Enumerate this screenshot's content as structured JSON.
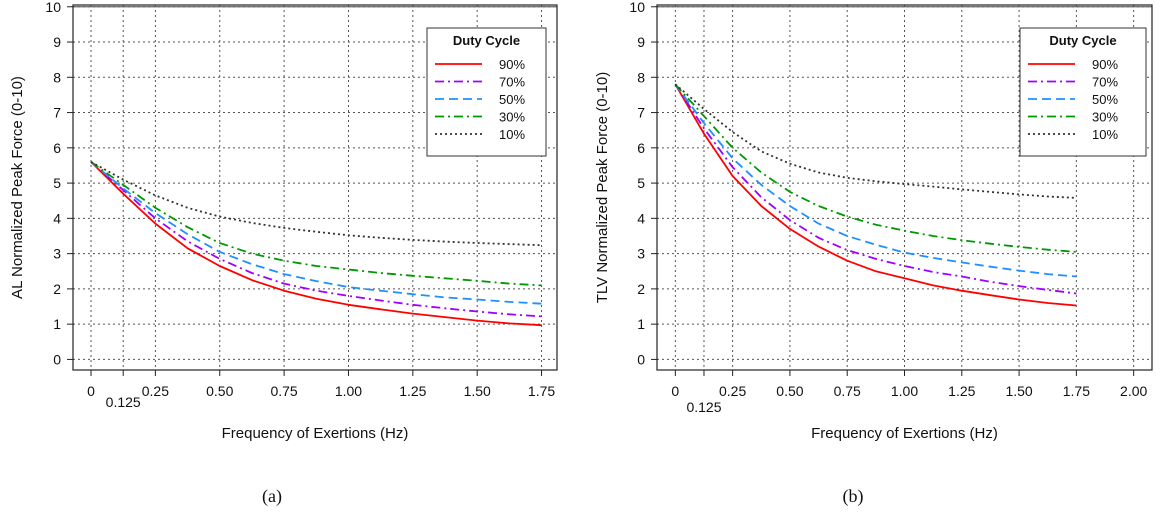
{
  "chart_data": [
    {
      "type": "line",
      "panel_label": "(a)",
      "xlabel": "Frequency of Exertions (Hz)",
      "ylabel": "AL Normalized Peak Force (0-10)",
      "xlim": [
        -0.07,
        1.81
      ],
      "ylim": [
        -0.3,
        10.05
      ],
      "x_ticks": [
        "0",
        "0.25",
        "0.50",
        "0.75",
        "1.00",
        "1.25",
        "1.50",
        "1.75"
      ],
      "x_tick_values": [
        0,
        0.25,
        0.5,
        0.75,
        1.0,
        1.25,
        1.5,
        1.75
      ],
      "x_extra_tick_label": "0.125",
      "x_extra_tick_value": 0.125,
      "y_ticks": [
        "0",
        "1",
        "2",
        "3",
        "4",
        "5",
        "6",
        "7",
        "8",
        "9",
        "10"
      ],
      "y_tick_values": [
        0,
        1,
        2,
        3,
        4,
        5,
        6,
        7,
        8,
        9,
        10
      ],
      "grid": true,
      "reference_line_y": 10,
      "legend": {
        "title": "Duty Cycle",
        "position": "top-right"
      },
      "x": [
        0,
        0.125,
        0.25,
        0.375,
        0.5,
        0.625,
        0.75,
        0.875,
        1.0,
        1.125,
        1.25,
        1.375,
        1.5,
        1.625,
        1.75
      ],
      "series": [
        {
          "name": "90%",
          "color": "#ff0000",
          "dash": "solid",
          "values": [
            5.6,
            4.7,
            3.85,
            3.15,
            2.65,
            2.25,
            1.95,
            1.72,
            1.55,
            1.42,
            1.3,
            1.2,
            1.1,
            1.02,
            0.97
          ]
        },
        {
          "name": "70%",
          "color": "#a000ff",
          "dash": "dashdot",
          "values": [
            5.6,
            4.8,
            4.0,
            3.35,
            2.85,
            2.45,
            2.15,
            1.95,
            1.8,
            1.67,
            1.55,
            1.45,
            1.36,
            1.28,
            1.22
          ]
        },
        {
          "name": "50%",
          "color": "#1e90ff",
          "dash": "dashed",
          "values": [
            5.6,
            4.85,
            4.15,
            3.55,
            3.05,
            2.7,
            2.42,
            2.22,
            2.05,
            1.95,
            1.85,
            1.76,
            1.7,
            1.63,
            1.58
          ]
        },
        {
          "name": "30%",
          "color": "#009900",
          "dash": "dashdot",
          "values": [
            5.6,
            4.95,
            4.3,
            3.75,
            3.3,
            3.0,
            2.8,
            2.65,
            2.55,
            2.45,
            2.37,
            2.3,
            2.23,
            2.15,
            2.1
          ]
        },
        {
          "name": "10%",
          "color": "#333333",
          "dash": "dotted",
          "values": [
            5.6,
            5.1,
            4.65,
            4.3,
            4.05,
            3.87,
            3.73,
            3.62,
            3.52,
            3.45,
            3.39,
            3.34,
            3.3,
            3.27,
            3.24
          ]
        }
      ]
    },
    {
      "type": "line",
      "panel_label": "(b)",
      "xlabel": "Frequency of Exertions (Hz)",
      "ylabel": "TLV Normalized Peak Force (0-10)",
      "xlim": [
        -0.08,
        2.08
      ],
      "ylim": [
        -0.3,
        10.05
      ],
      "x_ticks": [
        "0",
        "0.25",
        "0.50",
        "0.75",
        "1.00",
        "1.25",
        "1.50",
        "1.75",
        "2.00"
      ],
      "x_tick_values": [
        0,
        0.25,
        0.5,
        0.75,
        1.0,
        1.25,
        1.5,
        1.75,
        2.0
      ],
      "x_extra_tick_label": "0.125",
      "x_extra_tick_value": 0.125,
      "y_ticks": [
        "0",
        "1",
        "2",
        "3",
        "4",
        "5",
        "6",
        "7",
        "8",
        "9",
        "10"
      ],
      "y_tick_values": [
        0,
        1,
        2,
        3,
        4,
        5,
        6,
        7,
        8,
        9,
        10
      ],
      "grid": true,
      "reference_line_y": 10,
      "legend": {
        "title": "Duty Cycle",
        "position": "top-right"
      },
      "x": [
        0,
        0.125,
        0.25,
        0.375,
        0.5,
        0.625,
        0.75,
        0.875,
        1.0,
        1.125,
        1.25,
        1.375,
        1.5,
        1.625,
        1.75
      ],
      "series": [
        {
          "name": "90%",
          "color": "#ff0000",
          "dash": "solid",
          "values": [
            7.8,
            6.4,
            5.2,
            4.35,
            3.7,
            3.2,
            2.8,
            2.5,
            2.3,
            2.1,
            1.95,
            1.82,
            1.7,
            1.6,
            1.53
          ]
        },
        {
          "name": "70%",
          "color": "#a000ff",
          "dash": "dashdot",
          "values": [
            7.8,
            6.55,
            5.45,
            4.6,
            3.95,
            3.45,
            3.1,
            2.85,
            2.65,
            2.48,
            2.35,
            2.2,
            2.08,
            1.97,
            1.87
          ]
        },
        {
          "name": "50%",
          "color": "#1e90ff",
          "dash": "dashed",
          "values": [
            7.8,
            6.7,
            5.7,
            4.95,
            4.35,
            3.85,
            3.5,
            3.25,
            3.03,
            2.88,
            2.75,
            2.63,
            2.52,
            2.42,
            2.35
          ]
        },
        {
          "name": "30%",
          "color": "#009900",
          "dash": "dashdot",
          "values": [
            7.8,
            6.9,
            6.0,
            5.3,
            4.75,
            4.35,
            4.05,
            3.82,
            3.65,
            3.5,
            3.38,
            3.28,
            3.19,
            3.11,
            3.05
          ]
        },
        {
          "name": "10%",
          "color": "#333333",
          "dash": "dotted",
          "values": [
            7.8,
            7.1,
            6.45,
            5.9,
            5.55,
            5.3,
            5.15,
            5.05,
            4.97,
            4.9,
            4.82,
            4.75,
            4.68,
            4.62,
            4.58
          ]
        }
      ]
    }
  ]
}
